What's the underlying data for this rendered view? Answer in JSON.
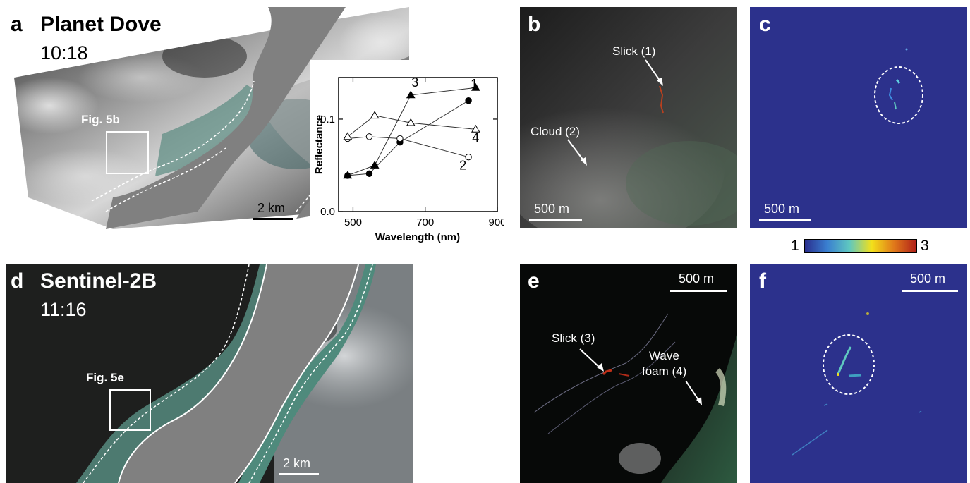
{
  "panels": {
    "a": {
      "letter": "a",
      "title": "Planet Dove",
      "time": "10:18",
      "box_label": "Fig. 5b",
      "scale": "2 km"
    },
    "b": {
      "letter": "b",
      "label1": "Slick (1)",
      "label2": "Cloud (2)",
      "scale": "500 m"
    },
    "c": {
      "letter": "c",
      "scale": "500 m"
    },
    "colorbar": {
      "min": "1",
      "max": "3",
      "colors": [
        "#2a2f8e",
        "#3a7fd0",
        "#5fc8c0",
        "#f3e01a",
        "#e0781a",
        "#b0201a"
      ]
    },
    "d": {
      "letter": "d",
      "title": "Sentinel-2B",
      "time": "11:16",
      "box_label": "Fig. 5e",
      "scale": "2 km"
    },
    "e": {
      "letter": "e",
      "label1": "Slick (3)",
      "label2a": "Wave",
      "label2b": "foam (4)",
      "scale": "500 m"
    },
    "f": {
      "letter": "f",
      "scale": "500 m"
    }
  },
  "chart_data": {
    "type": "line",
    "xlabel": "Wavelength (nm)",
    "ylabel": "Reflectance",
    "xlim": [
      460,
      900
    ],
    "ylim": [
      0,
      0.145
    ],
    "xticks": [
      "500",
      "700",
      "900"
    ],
    "yticks": [
      "0.0",
      "0.1"
    ],
    "series": [
      {
        "name": "1",
        "marker": "filled-circle",
        "x": [
          485,
          545,
          630,
          820
        ],
        "y": [
          0.039,
          0.041,
          0.075,
          0.12
        ]
      },
      {
        "name": "2",
        "marker": "open-circle",
        "x": [
          485,
          545,
          630,
          820
        ],
        "y": [
          0.079,
          0.081,
          0.079,
          0.059
        ]
      },
      {
        "name": "3",
        "marker": "filled-triangle",
        "x": [
          485,
          560,
          660,
          840
        ],
        "y": [
          0.039,
          0.05,
          0.126,
          0.134
        ]
      },
      {
        "name": "4",
        "marker": "open-triangle",
        "x": [
          485,
          560,
          660,
          840
        ],
        "y": [
          0.081,
          0.104,
          0.096,
          0.089
        ]
      }
    ]
  }
}
